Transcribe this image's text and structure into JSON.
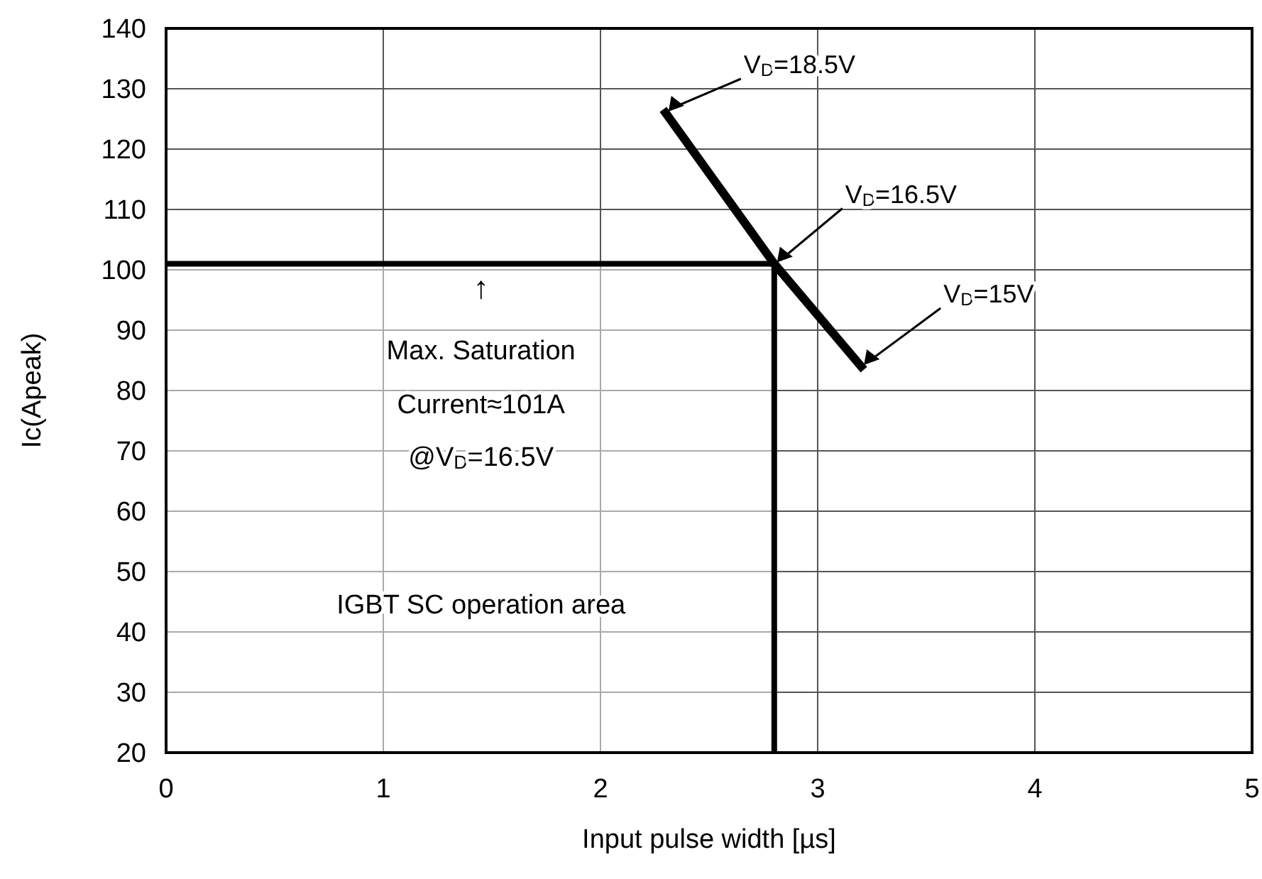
{
  "chart_data": {
    "type": "line",
    "xlabel": "Input pulse width [µs]",
    "ylabel": "Ic(Apeak)",
    "xlim": [
      0,
      5
    ],
    "xticks": [
      0,
      1,
      2,
      3,
      4,
      5
    ],
    "ylim": [
      20,
      140
    ],
    "yticks": [
      20,
      30,
      40,
      50,
      60,
      70,
      80,
      90,
      100,
      110,
      120,
      130,
      140
    ],
    "grid": true,
    "marker": "none",
    "line_style": "solid",
    "series": [
      {
        "type": "line",
        "color": "#000000",
        "x": [
          2.3,
          2.8,
          3.2
        ],
        "values": [
          126,
          101,
          84
        ]
      },
      {
        "type": "area",
        "color": "#000000",
        "x": [
          0,
          2.8,
          2.8
        ],
        "values": [
          101,
          101,
          20
        ]
      }
    ],
    "annotations": [
      {
        "text": "V$_{D}$=18.5V",
        "x": 2.3,
        "y": 126
      },
      {
        "text": "V$_{D}$=16.5V",
        "x": 2.8,
        "y": 101
      },
      {
        "text": "V$_{D}$=15V",
        "x": 3.2,
        "y": 84
      },
      "↑",
      "Max. Saturation",
      "Current≈101A",
      "@V$_{D}$=16.5V",
      "IGBT  SC operation area"
    ]
  }
}
